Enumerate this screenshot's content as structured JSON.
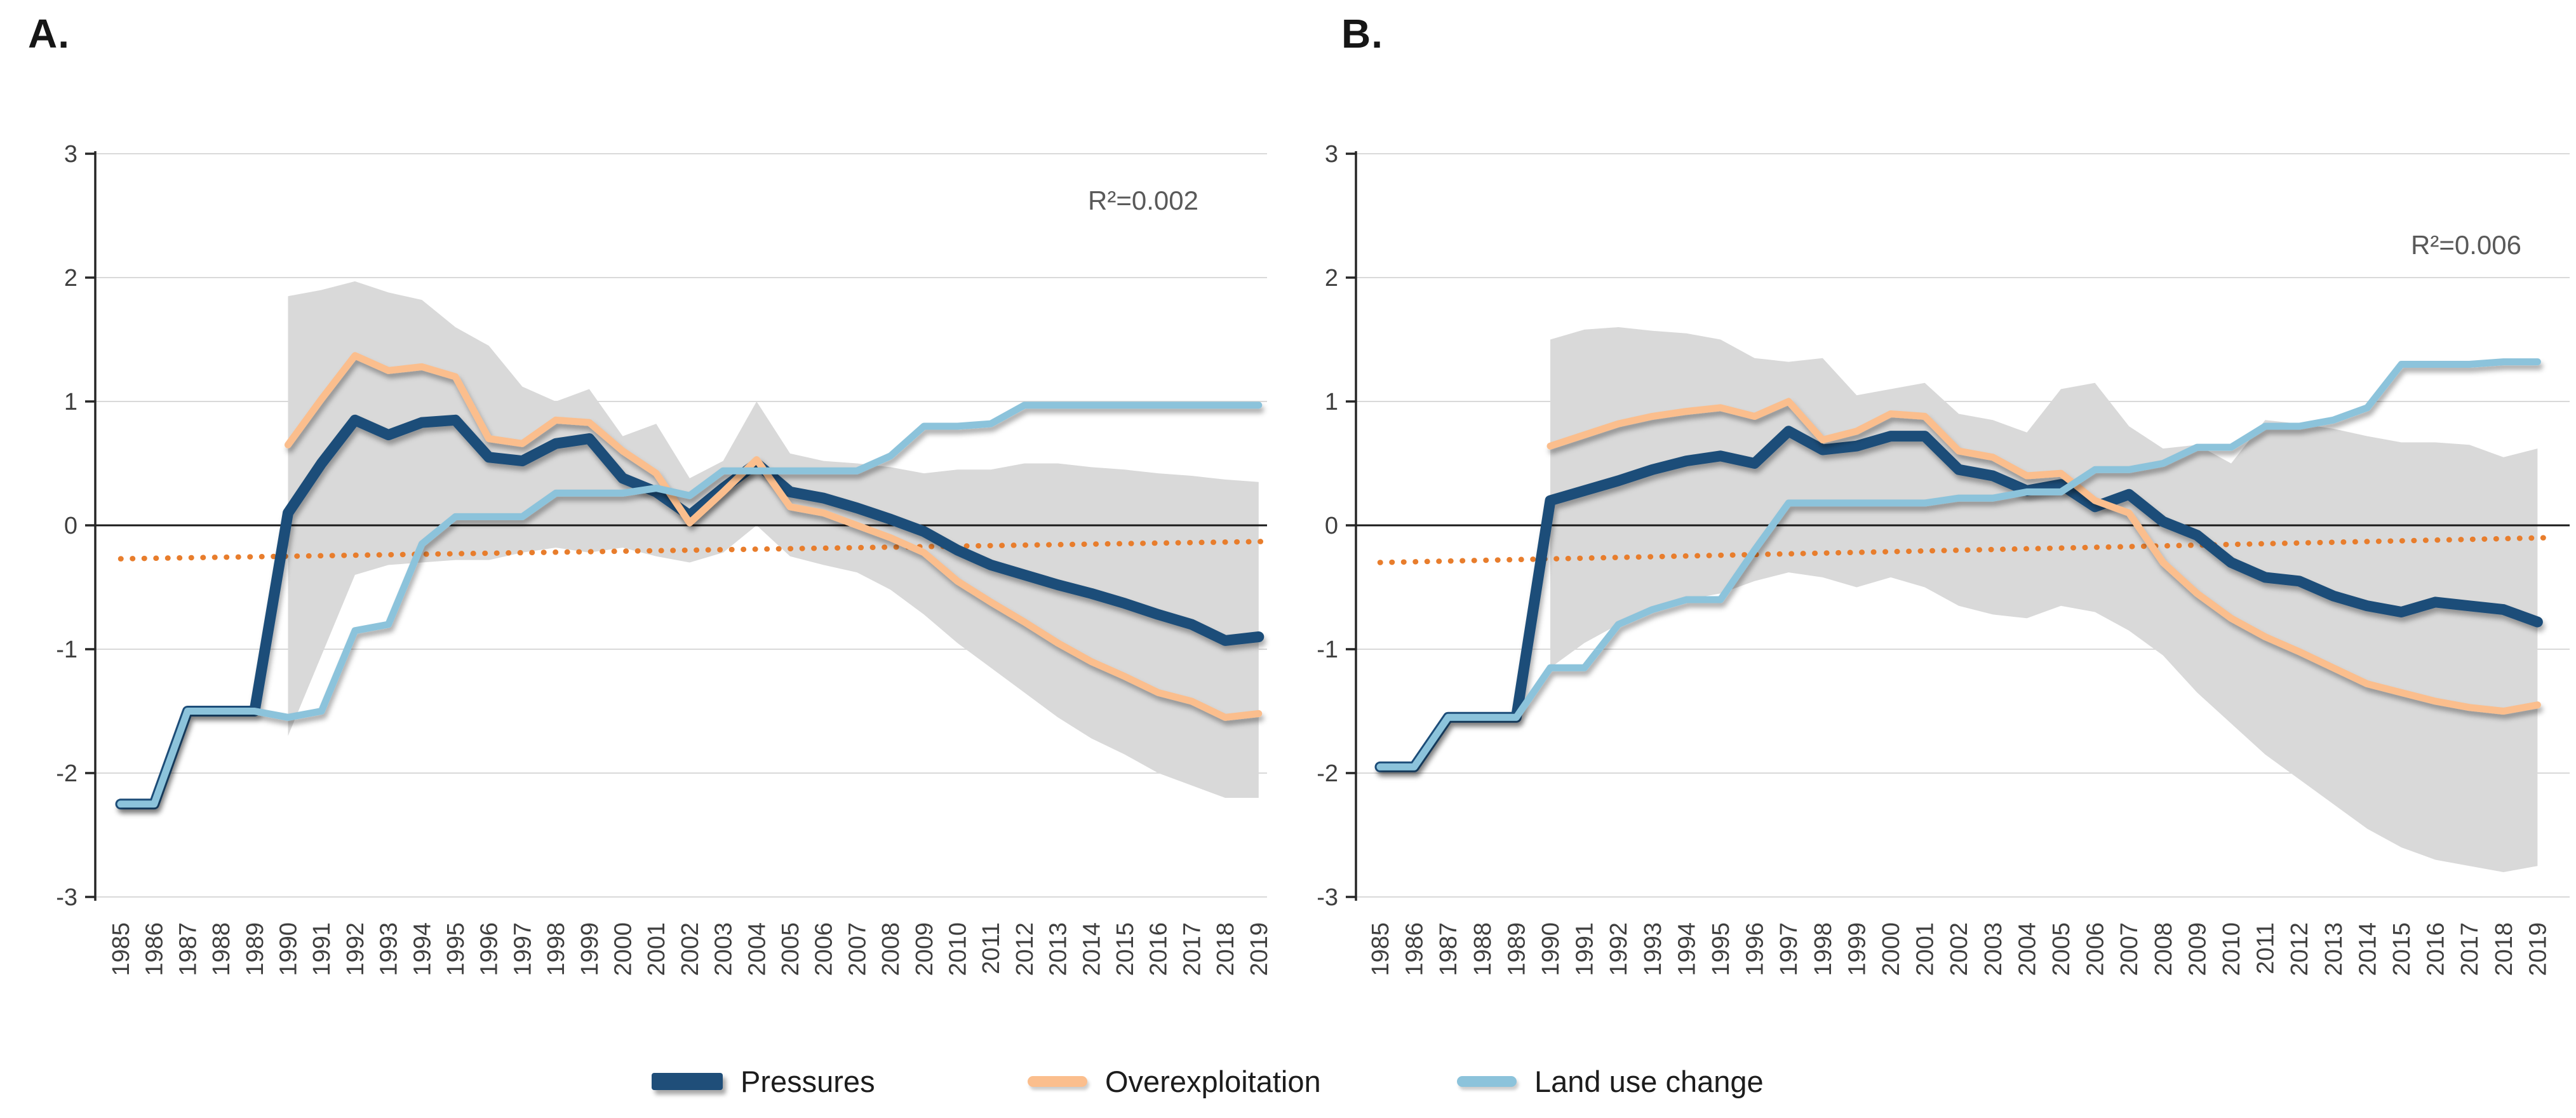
{
  "figure": {
    "background": "#ffffff"
  },
  "palette": {
    "pressures": "#1F4E79",
    "overexploitation": "#FBBE8D",
    "land_use_change": "#8CC3DB",
    "trend": "#E87D2C",
    "band": "#D9D9D9",
    "gridline": "#D9D9D9",
    "zero_line": "#1a1a1a",
    "axis": "#262626",
    "tick_text": "#3F3F3F",
    "r2_text": "#595959"
  },
  "legend": {
    "items": [
      {
        "label": "Pressures",
        "color": "#1F4E79",
        "style": "thick"
      },
      {
        "label": "Overexploitation",
        "color": "#FBBE8D",
        "style": "thin"
      },
      {
        "label": "Land use change",
        "color": "#8CC3DB",
        "style": "thin"
      }
    ]
  },
  "chart_data": [
    {
      "panel_label": "A.",
      "type": "line",
      "r2_label": "R²=0.002",
      "x": [
        1985,
        1986,
        1987,
        1988,
        1989,
        1990,
        1991,
        1992,
        1993,
        1994,
        1995,
        1996,
        1997,
        1998,
        1999,
        2000,
        2001,
        2002,
        2003,
        2004,
        2005,
        2006,
        2007,
        2008,
        2009,
        2010,
        2011,
        2012,
        2013,
        2014,
        2015,
        2016,
        2017,
        2018,
        2019
      ],
      "ylim": [
        -3,
        3
      ],
      "yticks": [
        3,
        2,
        1,
        0,
        -1,
        -2,
        -3
      ],
      "grid": true,
      "legend_position": "bottom",
      "series": [
        {
          "name": "Pressures",
          "color": "#1F4E79",
          "width": 17,
          "values": [
            -2.25,
            -2.25,
            -1.5,
            -1.5,
            -1.5,
            0.1,
            0.5,
            0.85,
            0.73,
            0.83,
            0.85,
            0.55,
            0.52,
            0.66,
            0.7,
            0.38,
            0.27,
            0.08,
            0.3,
            0.5,
            0.27,
            0.22,
            0.14,
            0.05,
            -0.05,
            -0.2,
            -0.32,
            -0.4,
            -0.48,
            -0.55,
            -0.63,
            -0.72,
            -0.8,
            -0.93,
            -0.9
          ]
        },
        {
          "name": "Overexploitation",
          "color": "#FBBE8D",
          "width": 11,
          "values": [
            null,
            null,
            null,
            null,
            null,
            0.65,
            1.02,
            1.37,
            1.25,
            1.28,
            1.2,
            0.7,
            0.66,
            0.85,
            0.83,
            0.6,
            0.42,
            0.02,
            0.27,
            0.53,
            0.15,
            0.1,
            0.0,
            -0.1,
            -0.22,
            -0.45,
            -0.62,
            -0.78,
            -0.95,
            -1.1,
            -1.22,
            -1.35,
            -1.42,
            -1.55,
            -1.52
          ]
        },
        {
          "name": "Land use change",
          "color": "#8CC3DB",
          "width": 11,
          "values": [
            -2.25,
            -2.25,
            -1.5,
            -1.5,
            -1.5,
            -1.55,
            -1.5,
            -0.85,
            -0.8,
            -0.15,
            0.07,
            0.07,
            0.07,
            0.26,
            0.26,
            0.26,
            0.3,
            0.24,
            0.44,
            0.44,
            0.44,
            0.44,
            0.44,
            0.56,
            0.8,
            0.8,
            0.82,
            0.97,
            0.97,
            0.97,
            0.97,
            0.97,
            0.97,
            0.97,
            0.97
          ]
        }
      ],
      "band": {
        "name": "confidence-band",
        "color": "#D9D9D9",
        "upper": [
          null,
          null,
          null,
          null,
          null,
          1.85,
          1.9,
          1.97,
          1.88,
          1.82,
          1.6,
          1.45,
          1.12,
          1.0,
          1.1,
          0.72,
          0.82,
          0.38,
          0.52,
          1.0,
          0.58,
          0.52,
          0.5,
          0.47,
          0.42,
          0.45,
          0.45,
          0.5,
          0.5,
          0.47,
          0.45,
          0.42,
          0.4,
          0.37,
          0.35
        ],
        "lower": [
          null,
          null,
          null,
          null,
          null,
          -1.7,
          -1.05,
          -0.4,
          -0.32,
          -0.3,
          -0.28,
          -0.28,
          -0.22,
          -0.18,
          -0.22,
          -0.18,
          -0.25,
          -0.3,
          -0.22,
          0.0,
          -0.25,
          -0.32,
          -0.38,
          -0.52,
          -0.72,
          -0.95,
          -1.15,
          -1.35,
          -1.55,
          -1.72,
          -1.85,
          -2.0,
          -2.1,
          -2.2,
          -2.2
        ]
      },
      "trend": {
        "name": "linear-trend",
        "color": "#E87D2C",
        "start": -0.27,
        "end": -0.13
      },
      "r2_pos": {
        "x": 1800,
        "y": 330
      }
    },
    {
      "panel_label": "B.",
      "type": "line",
      "r2_label": "R²=0.006",
      "x": [
        1985,
        1986,
        1987,
        1988,
        1989,
        1990,
        1991,
        1992,
        1993,
        1994,
        1995,
        1996,
        1997,
        1998,
        1999,
        2000,
        2001,
        2002,
        2003,
        2004,
        2005,
        2006,
        2007,
        2008,
        2009,
        2010,
        2011,
        2012,
        2013,
        2014,
        2015,
        2016,
        2017,
        2018,
        2019
      ],
      "ylim": [
        -3,
        3
      ],
      "yticks": [
        3,
        2,
        1,
        0,
        -1,
        -2,
        -3
      ],
      "grid": true,
      "legend_position": "bottom",
      "series": [
        {
          "name": "Pressures",
          "color": "#1F4E79",
          "width": 17,
          "values": [
            -1.95,
            -1.95,
            -1.55,
            -1.55,
            -1.55,
            0.2,
            0.28,
            0.36,
            0.45,
            0.52,
            0.56,
            0.5,
            0.76,
            0.61,
            0.64,
            0.72,
            0.72,
            0.45,
            0.4,
            0.28,
            0.33,
            0.15,
            0.25,
            0.03,
            -0.08,
            -0.3,
            -0.42,
            -0.45,
            -0.57,
            -0.65,
            -0.7,
            -0.62,
            -0.65,
            -0.68,
            -0.78
          ]
        },
        {
          "name": "Overexploitation",
          "color": "#FBBE8D",
          "width": 11,
          "values": [
            null,
            null,
            null,
            null,
            null,
            0.64,
            0.73,
            0.82,
            0.88,
            0.92,
            0.95,
            0.88,
            1.0,
            0.69,
            0.76,
            0.9,
            0.88,
            0.6,
            0.55,
            0.4,
            0.42,
            0.2,
            0.1,
            -0.3,
            -0.55,
            -0.75,
            -0.9,
            -1.02,
            -1.15,
            -1.28,
            -1.35,
            -1.42,
            -1.47,
            -1.5,
            -1.45
          ]
        },
        {
          "name": "Land use change",
          "color": "#8CC3DB",
          "width": 11,
          "values": [
            -1.95,
            -1.95,
            -1.55,
            -1.55,
            -1.55,
            -1.15,
            -1.15,
            -0.8,
            -0.68,
            -0.6,
            -0.6,
            -0.2,
            0.18,
            0.18,
            0.18,
            0.18,
            0.18,
            0.22,
            0.22,
            0.27,
            0.27,
            0.45,
            0.45,
            0.5,
            0.63,
            0.63,
            0.8,
            0.8,
            0.85,
            0.95,
            1.3,
            1.3,
            1.3,
            1.32,
            1.32
          ]
        }
      ],
      "band": {
        "name": "confidence-band",
        "color": "#D9D9D9",
        "upper": [
          null,
          null,
          null,
          null,
          null,
          1.5,
          1.58,
          1.6,
          1.57,
          1.55,
          1.5,
          1.35,
          1.32,
          1.35,
          1.05,
          1.1,
          1.15,
          0.9,
          0.85,
          0.75,
          1.1,
          1.15,
          0.8,
          0.62,
          0.65,
          0.5,
          0.85,
          0.82,
          0.78,
          0.72,
          0.67,
          0.67,
          0.65,
          0.55,
          0.62
        ],
        "lower": [
          null,
          null,
          null,
          null,
          null,
          -1.15,
          -0.95,
          -0.8,
          -0.68,
          -0.6,
          -0.55,
          -0.45,
          -0.38,
          -0.42,
          -0.5,
          -0.42,
          -0.5,
          -0.65,
          -0.72,
          -0.75,
          -0.65,
          -0.7,
          -0.85,
          -1.05,
          -1.35,
          -1.6,
          -1.85,
          -2.05,
          -2.25,
          -2.45,
          -2.6,
          -2.7,
          -2.75,
          -2.8,
          -2.75
        ]
      },
      "trend": {
        "name": "linear-trend",
        "color": "#E87D2C",
        "start": -0.3,
        "end": -0.1
      },
      "r2_pos": {
        "x": 1855,
        "y": 400
      }
    }
  ]
}
